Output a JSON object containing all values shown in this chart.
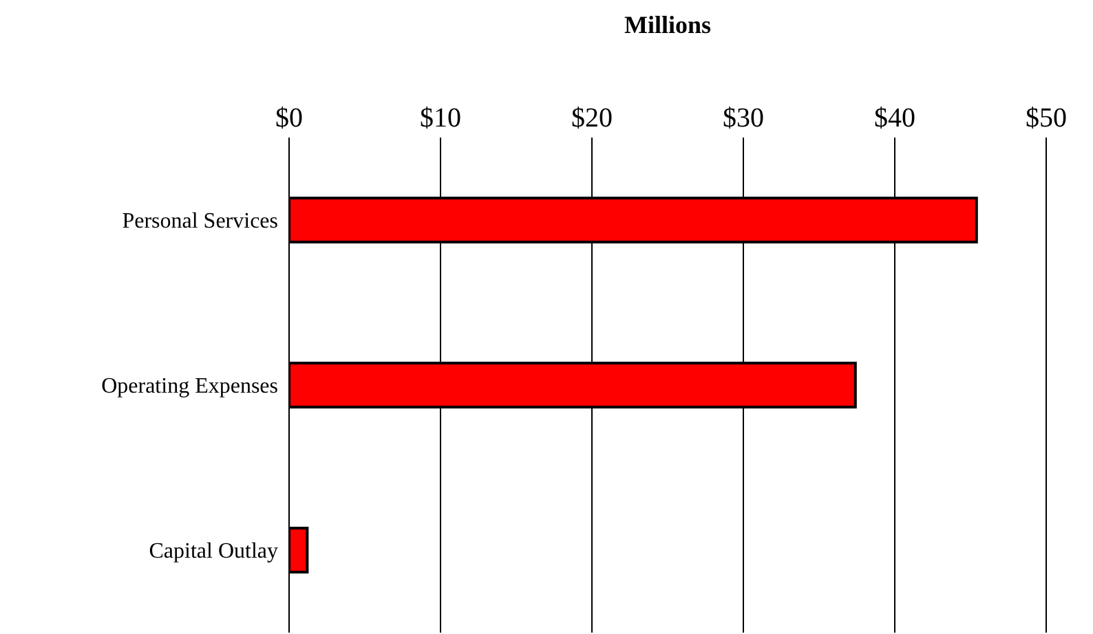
{
  "chart_data": {
    "type": "bar",
    "orientation": "horizontal",
    "xlabel": "Millions",
    "categories": [
      "Personal Services",
      "Operating Expenses",
      "Capital Outlay"
    ],
    "values": [
      45.4,
      37.4,
      1.2
    ],
    "color": "#ff0000",
    "xlim": [
      0,
      50
    ],
    "xticks": [
      {
        "value": 0,
        "label": "$0"
      },
      {
        "value": 10,
        "label": "$10"
      },
      {
        "value": 20,
        "label": "$20"
      },
      {
        "value": 30,
        "label": "$30"
      },
      {
        "value": 40,
        "label": "$40"
      },
      {
        "value": 50,
        "label": "$50"
      }
    ],
    "grid": "x"
  }
}
